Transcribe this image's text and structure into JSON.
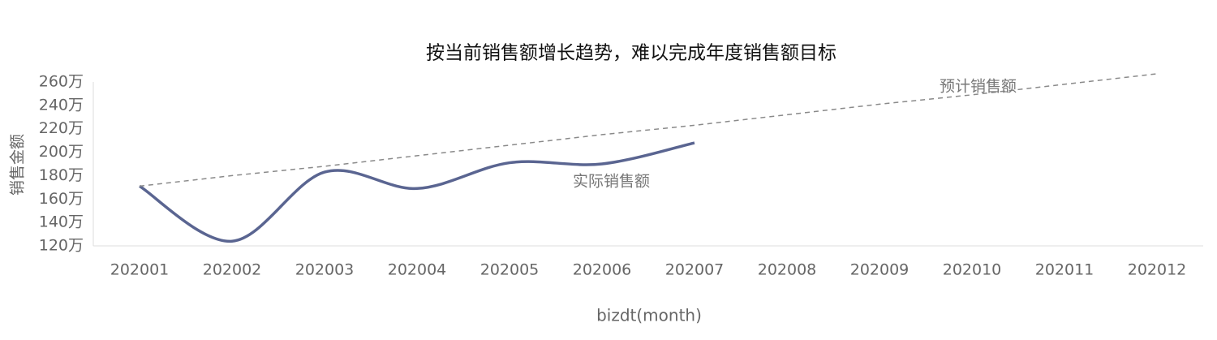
{
  "chart_data": {
    "type": "line",
    "title": "按当前销售额增长趋势，难以完成年度销售额目标",
    "x_label": "bizdt(month)",
    "y_label": "销售金额",
    "categories": [
      "202001",
      "202002",
      "202003",
      "202004",
      "202005",
      "202006",
      "202007",
      "202008",
      "202009",
      "202010",
      "202011",
      "202012"
    ],
    "series": [
      {
        "name": "实际销售额",
        "color": "#5a6591",
        "dashed": false,
        "smooth": true,
        "values": [
          171,
          124,
          183,
          169,
          191,
          190,
          208,
          null,
          null,
          null,
          null,
          null
        ]
      },
      {
        "name": "预计销售额",
        "color": "#8a8a8a",
        "dashed": true,
        "smooth": false,
        "values": [
          171,
          180,
          188,
          197,
          206,
          215,
          223,
          232,
          241,
          249,
          258,
          267
        ]
      }
    ],
    "ylim": [
      120,
      260
    ],
    "yticks": [
      {
        "value": 120,
        "label": "120万"
      },
      {
        "value": 140,
        "label": "140万"
      },
      {
        "value": 160,
        "label": "160万"
      },
      {
        "value": 180,
        "label": "180万"
      },
      {
        "value": 200,
        "label": "200万"
      },
      {
        "value": 220,
        "label": "220万"
      },
      {
        "value": 240,
        "label": "240万"
      },
      {
        "value": 260,
        "label": "260万"
      }
    ],
    "grid": false
  }
}
